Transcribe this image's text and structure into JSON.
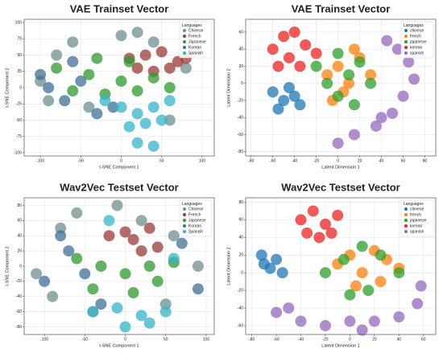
{
  "chart_data": [
    {
      "type": "scatter",
      "title": "VAE Trainset Vector",
      "x_label": "t-SNE Component 1",
      "y_label": "t-SNE Component 2",
      "legend_title": "Languages",
      "legend": "upper right",
      "grid": true,
      "xlim": [
        -120,
        115
      ],
      "xticks": [
        -100,
        -50,
        0,
        50,
        100
      ],
      "ylim": [
        -105,
        105
      ],
      "yticks": [
        -100,
        -75,
        -50,
        -25,
        0,
        25,
        50,
        75,
        100
      ],
      "series": [
        {
          "name": "Chinese",
          "color": "#6f8f8f",
          "x": [
            -100,
            -80,
            -60,
            -40,
            0,
            40,
            80,
            -90,
            60,
            20
          ],
          "values": [
            10,
            50,
            70,
            -30,
            80,
            70,
            30,
            -20,
            -50,
            85
          ]
        },
        {
          "name": "French",
          "color": "#9a3b35",
          "x": [
            10,
            30,
            50,
            70,
            20,
            60,
            40,
            80
          ],
          "values": [
            45,
            50,
            55,
            40,
            30,
            30,
            25,
            45
          ]
        },
        {
          "name": "Japanese",
          "color": "#2e9a2e",
          "x": [
            -80,
            -40,
            0,
            40,
            -60,
            -20,
            20,
            60,
            -30,
            10
          ],
          "values": [
            30,
            20,
            10,
            15,
            -5,
            -10,
            -5,
            0,
            45,
            40
          ]
        },
        {
          "name": "Korean",
          "color": "#3f6f96",
          "x": [
            -90,
            -70,
            -50,
            -30,
            -10,
            -100,
            -60
          ],
          "values": [
            0,
            -20,
            10,
            -40,
            -30,
            20,
            40
          ]
        },
        {
          "name": "Spanish",
          "color": "#34b4c8",
          "x": [
            -20,
            0,
            20,
            40,
            60,
            10,
            30,
            50,
            20,
            40
          ],
          "values": [
            -20,
            -30,
            -40,
            -30,
            -20,
            -60,
            -55,
            -50,
            -85,
            -90
          ]
        }
      ]
    },
    {
      "type": "scatter",
      "title": "VAE Trainset Vector",
      "x_label": "Latent Dimension 1",
      "y_label": "Latent Dimension 2",
      "legend_title": "Languages",
      "legend": "upper right",
      "grid": true,
      "xlim": [
        -85,
        90
      ],
      "xticks": [
        -80,
        -60,
        -40,
        -20,
        0,
        20,
        40,
        60,
        80
      ],
      "ylim": [
        -85,
        75
      ],
      "yticks": [
        -80,
        -60,
        -40,
        -20,
        0,
        20,
        40,
        60
      ],
      "series": [
        {
          "name": "chinese",
          "color": "#1f77b4",
          "x": [
            -60,
            -50,
            -40,
            -55,
            -45,
            -35
          ],
          "values": [
            -10,
            -20,
            -15,
            -30,
            -5,
            -25
          ]
        },
        {
          "name": "french",
          "color": "#ff7f0e",
          "x": [
            -10,
            0,
            10,
            20,
            30,
            5,
            15,
            -5
          ],
          "values": [
            10,
            20,
            0,
            30,
            10,
            -10,
            40,
            -20
          ]
        },
        {
          "name": "japanese",
          "color": "#2ca02c",
          "x": [
            -20,
            -10,
            0,
            10,
            20,
            30,
            0,
            15
          ],
          "values": [
            20,
            0,
            -15,
            10,
            25,
            0,
            35,
            -25
          ]
        },
        {
          "name": "korean",
          "color": "#ee2222",
          "x": [
            -60,
            -50,
            -40,
            -30,
            -20,
            -45,
            -35,
            -55
          ],
          "values": [
            40,
            55,
            60,
            45,
            35,
            30,
            20,
            20
          ]
        },
        {
          "name": "spanish",
          "color": "#9467bd",
          "x": [
            45,
            55,
            65,
            70,
            60,
            50,
            35,
            15,
            0,
            40
          ],
          "values": [
            50,
            40,
            25,
            5,
            -15,
            -35,
            -50,
            -60,
            -70,
            -40
          ]
        }
      ]
    },
    {
      "type": "scatter",
      "title": "Wav2Vec Testset Vector",
      "x_label": "t-SNE Component 1",
      "y_label": "t-SNE Component 2",
      "legend_title": "Languages",
      "legend": "upper right",
      "grid": true,
      "xlim": [
        -125,
        110
      ],
      "xticks": [
        -100,
        -50,
        0,
        50,
        100
      ],
      "ylim": [
        -90,
        90
      ],
      "yticks": [
        -80,
        -60,
        -40,
        -20,
        0,
        20,
        40,
        60,
        80
      ],
      "series": [
        {
          "name": "Chinese",
          "color": "#6f8f8f",
          "x": [
            -110,
            -80,
            -60,
            -90,
            -40,
            20,
            60,
            90,
            -10,
            50
          ],
          "values": [
            -10,
            50,
            70,
            -40,
            -60,
            60,
            40,
            0,
            80,
            -50
          ]
        },
        {
          "name": "French",
          "color": "#9a3b35",
          "x": [
            -20,
            0,
            20,
            40,
            10,
            30
          ],
          "values": [
            40,
            45,
            20,
            25,
            35,
            50
          ]
        },
        {
          "name": "Japanese",
          "color": "#2e9a2e",
          "x": [
            -60,
            -30,
            0,
            30,
            60,
            -40,
            10,
            40
          ],
          "values": [
            10,
            0,
            -10,
            0,
            5,
            -30,
            -35,
            -20
          ]
        },
        {
          "name": "Korean",
          "color": "#3f6f96",
          "x": [
            -100,
            -70,
            -50,
            -80,
            -30,
            70,
            90
          ],
          "values": [
            -20,
            20,
            -10,
            40,
            -50,
            30,
            -30
          ]
        },
        {
          "name": "Spanish",
          "color": "#34b4c8",
          "x": [
            -40,
            -10,
            20,
            50,
            0,
            30,
            60,
            -20
          ],
          "values": [
            -60,
            -55,
            -65,
            -60,
            -80,
            -75,
            10,
            60
          ]
        }
      ]
    },
    {
      "type": "scatter",
      "title": "Wav2Vec Testset Vector",
      "x_label": "Latent Dimension 1",
      "y_label": "Latent Dimension 2",
      "legend_title": "Languages",
      "legend": "upper right",
      "grid": true,
      "xlim": [
        -85,
        70
      ],
      "xticks": [
        -80,
        -60,
        -40,
        -20,
        0,
        20,
        40,
        60
      ],
      "ylim": [
        -70,
        85
      ],
      "yticks": [
        -60,
        -40,
        -20,
        0,
        20,
        40,
        60,
        80
      ],
      "series": [
        {
          "name": "chinese",
          "color": "#1f77b4",
          "x": [
            -70,
            -65,
            -60,
            -55,
            -72
          ],
          "values": [
            10,
            5,
            15,
            0,
            20
          ]
        },
        {
          "name": "french",
          "color": "#ff7f0e",
          "x": [
            -10,
            0,
            10,
            20,
            30,
            40,
            5,
            25
          ],
          "values": [
            10,
            20,
            0,
            25,
            15,
            5,
            -15,
            -10
          ]
        },
        {
          "name": "japanese",
          "color": "#2ca02c",
          "x": [
            -20,
            -5,
            10,
            25,
            40,
            15,
            0
          ],
          "values": [
            0,
            15,
            30,
            20,
            0,
            -20,
            -25
          ]
        },
        {
          "name": "korean",
          "color": "#ee2222",
          "x": [
            -40,
            -30,
            -20,
            -10,
            -25,
            -15,
            -35
          ],
          "values": [
            60,
            70,
            55,
            65,
            40,
            45,
            45
          ]
        },
        {
          "name": "spanish",
          "color": "#9467bd",
          "x": [
            -60,
            -40,
            -20,
            0,
            20,
            40,
            55,
            58,
            -50,
            10
          ],
          "values": [
            -45,
            -55,
            -60,
            -55,
            -55,
            -50,
            -35,
            -15,
            -40,
            -65
          ]
        }
      ]
    }
  ]
}
